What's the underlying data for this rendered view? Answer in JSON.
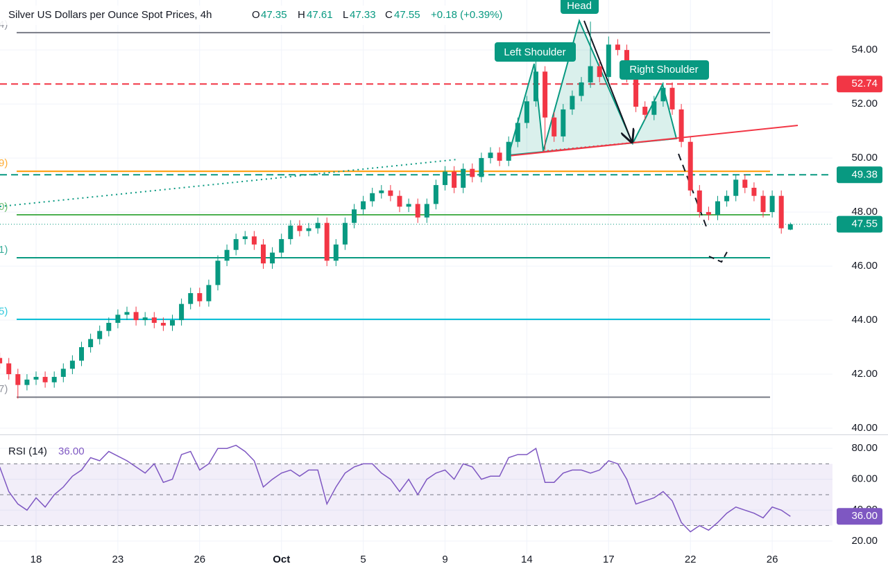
{
  "chart_data": {
    "type": "candlestick",
    "title": "Silver US Dollars per Ounce Spot Prices, 4h",
    "header": {
      "o": "O",
      "h": "H",
      "l": "L",
      "c": "C",
      "change": "+0.18 (+0.39%)"
    },
    "annotations": [
      "Left Shoulder",
      "Head",
      "Right Shoulder"
    ],
    "categories": [
      null,
      null,
      null,
      null,
      "18",
      null,
      null,
      null,
      null,
      null,
      null,
      null,
      null,
      "23",
      null,
      null,
      null,
      null,
      null,
      null,
      null,
      null,
      "26",
      null,
      null,
      null,
      null,
      null,
      null,
      null,
      null,
      "Oct",
      null,
      null,
      null,
      null,
      null,
      null,
      null,
      null,
      "5",
      null,
      null,
      null,
      null,
      null,
      null,
      null,
      null,
      "9",
      null,
      null,
      null,
      null,
      null,
      null,
      null,
      null,
      "14",
      null,
      null,
      null,
      null,
      null,
      null,
      null,
      null,
      "17",
      null,
      null,
      null,
      null,
      null,
      null,
      null,
      null,
      "22",
      null,
      null,
      null,
      null,
      null,
      null,
      null,
      null,
      "26",
      null,
      null
    ],
    "open": [
      42.6,
      42.4,
      42.0,
      41.6,
      41.8,
      41.9,
      41.7,
      41.9,
      42.2,
      42.5,
      43.0,
      43.3,
      43.6,
      43.9,
      44.2,
      44.3,
      44.0,
      44.1,
      43.9,
      43.8,
      44.0,
      44.6,
      45.0,
      44.7,
      45.3,
      46.2,
      46.6,
      47.0,
      47.1,
      46.8,
      46.1,
      46.5,
      47.0,
      47.5,
      47.3,
      47.4,
      47.6,
      46.2,
      46.8,
      47.6,
      48.1,
      48.4,
      48.7,
      48.8,
      48.6,
      48.2,
      48.3,
      47.8,
      48.3,
      49.0,
      49.5,
      48.9,
      49.6,
      49.3,
      50.0,
      50.2,
      49.9,
      50.6,
      51.3,
      52.1,
      53.2,
      51.5,
      50.8,
      51.8,
      52.3,
      52.8,
      53.4,
      53.0,
      54.2,
      54.0,
      53.0,
      51.9,
      51.6,
      52.1,
      52.6,
      51.8,
      50.6,
      48.8,
      48.0,
      47.9,
      48.4,
      48.6,
      49.2,
      48.9,
      48.6,
      48.0,
      48.6,
      47.35
    ],
    "high": [
      42.8,
      42.6,
      42.2,
      42.0,
      42.1,
      42.1,
      42.1,
      42.4,
      42.7,
      43.2,
      43.5,
      43.8,
      44.1,
      44.4,
      44.5,
      44.5,
      44.3,
      44.3,
      44.1,
      44.2,
      44.8,
      45.2,
      45.2,
      45.5,
      46.4,
      46.8,
      47.2,
      47.3,
      47.3,
      47.0,
      46.7,
      47.2,
      47.7,
      47.7,
      47.6,
      47.8,
      47.8,
      47.0,
      47.8,
      48.3,
      48.6,
      48.9,
      49.0,
      49.0,
      48.8,
      48.5,
      48.5,
      48.5,
      49.2,
      49.7,
      49.7,
      49.8,
      49.8,
      50.2,
      50.4,
      50.4,
      50.8,
      51.5,
      52.3,
      53.6,
      53.4,
      51.7,
      52.0,
      52.5,
      53.0,
      55.05,
      53.6,
      54.5,
      54.4,
      54.2,
      53.2,
      52.1,
      52.3,
      52.8,
      52.8,
      52.0,
      50.8,
      49.0,
      48.2,
      48.6,
      48.8,
      49.4,
      49.4,
      49.1,
      48.8,
      48.8,
      48.8,
      47.61
    ],
    "low": [
      42.2,
      41.8,
      41.1,
      41.4,
      41.6,
      41.5,
      41.5,
      41.7,
      42.0,
      42.3,
      42.8,
      43.1,
      43.4,
      43.7,
      44.0,
      43.8,
      43.8,
      43.7,
      43.6,
      43.6,
      43.8,
      44.4,
      44.5,
      44.5,
      45.1,
      46.0,
      46.4,
      46.8,
      46.6,
      45.9,
      45.9,
      46.3,
      46.8,
      47.1,
      47.1,
      47.2,
      46.0,
      46.0,
      46.6,
      47.4,
      47.9,
      48.2,
      48.5,
      48.4,
      48.0,
      48.0,
      47.6,
      47.6,
      48.1,
      48.8,
      48.7,
      48.7,
      49.1,
      49.1,
      49.8,
      49.7,
      49.7,
      50.4,
      51.1,
      51.9,
      50.3,
      50.6,
      50.6,
      51.6,
      52.1,
      52.6,
      52.8,
      52.8,
      53.8,
      52.8,
      51.7,
      51.4,
      51.4,
      51.9,
      51.6,
      50.4,
      48.6,
      47.8,
      47.7,
      47.7,
      48.2,
      48.4,
      48.7,
      48.4,
      47.8,
      47.8,
      47.2,
      47.33
    ],
    "close": [
      42.4,
      42.0,
      41.6,
      41.8,
      41.9,
      41.7,
      41.9,
      42.2,
      42.5,
      43.0,
      43.3,
      43.6,
      43.9,
      44.2,
      44.3,
      44.0,
      44.1,
      43.9,
      43.8,
      44.0,
      44.6,
      45.0,
      44.7,
      45.3,
      46.2,
      46.6,
      47.0,
      47.1,
      46.8,
      46.1,
      46.5,
      47.0,
      47.5,
      47.3,
      47.4,
      47.6,
      46.2,
      46.8,
      47.6,
      48.1,
      48.4,
      48.7,
      48.8,
      48.6,
      48.2,
      48.3,
      47.8,
      48.3,
      49.0,
      49.5,
      48.9,
      49.6,
      49.3,
      50.0,
      50.2,
      49.9,
      50.6,
      51.3,
      52.1,
      53.2,
      51.5,
      50.8,
      51.8,
      52.3,
      52.8,
      53.4,
      53.0,
      54.2,
      54.0,
      53.0,
      51.9,
      51.6,
      52.1,
      52.6,
      51.8,
      50.6,
      48.8,
      48.0,
      47.9,
      48.4,
      48.6,
      49.2,
      48.9,
      48.6,
      48.0,
      48.6,
      47.4,
      47.55
    ],
    "up_color": "#089981",
    "down_color": "#f23645",
    "ylim": [
      39.77,
      55.85
    ],
    "yticks": [
      {
        "value": 40,
        "label": "40.00"
      },
      {
        "value": 42,
        "label": "42.00"
      },
      {
        "value": 44,
        "label": "44.00"
      },
      {
        "value": 46,
        "label": "46.00"
      },
      {
        "value": 48,
        "label": "48.00"
      },
      {
        "value": 50,
        "label": "50.00"
      },
      {
        "value": 52,
        "label": "52.00"
      },
      {
        "value": 54,
        "label": "54.00"
      }
    ],
    "grid": true,
    "levels": [
      {
        "value": 54.64,
        "color": "#787b86",
        "label": "4)"
      },
      {
        "value": 52.74,
        "color": "#f23645",
        "dash": true,
        "tag": true
      },
      {
        "value": 49.51,
        "color": "#ff9800",
        "label": "9)"
      },
      {
        "value": 49.38,
        "color": "#089981",
        "dash": true,
        "tag": true
      },
      {
        "value": 47.9,
        "color": "#4caf50",
        "label": "0)"
      },
      {
        "value": 46.31,
        "color": "#089981",
        "label": "1)"
      },
      {
        "value": 44.03,
        "color": "#00bcd4",
        "label": "5)"
      },
      {
        "value": 41.15,
        "color": "#787b86",
        "label": "7)"
      }
    ],
    "rsi": {
      "title": "RSI (14)",
      "current": "36.00",
      "color": "#7e57c2",
      "values": [
        68,
        52,
        44,
        40,
        48,
        42,
        50,
        55,
        62,
        66,
        74,
        72,
        78,
        75,
        72,
        68,
        64,
        70,
        58,
        60,
        76,
        78,
        66,
        70,
        80,
        80,
        82,
        78,
        72,
        55,
        60,
        64,
        66,
        62,
        66,
        66,
        44,
        55,
        64,
        68,
        70,
        70,
        64,
        60,
        52,
        60,
        50,
        60,
        64,
        66,
        60,
        70,
        68,
        60,
        62,
        62,
        74,
        76,
        76,
        80,
        58,
        58,
        64,
        66,
        66,
        64,
        66,
        72,
        70,
        60,
        44,
        46,
        48,
        52,
        46,
        32,
        26,
        30,
        27,
        32,
        38,
        42,
        40,
        38,
        35,
        42,
        40,
        36
      ],
      "ylim": [
        11.4,
        88.6
      ],
      "yticks": [
        {
          "value": 20,
          "label": "20.00"
        },
        {
          "value": 40,
          "label": "40.00"
        },
        {
          "value": 60,
          "label": "60.00"
        },
        {
          "value": 80,
          "label": "80.00"
        }
      ],
      "bands": [
        70,
        50,
        30
      ]
    }
  }
}
